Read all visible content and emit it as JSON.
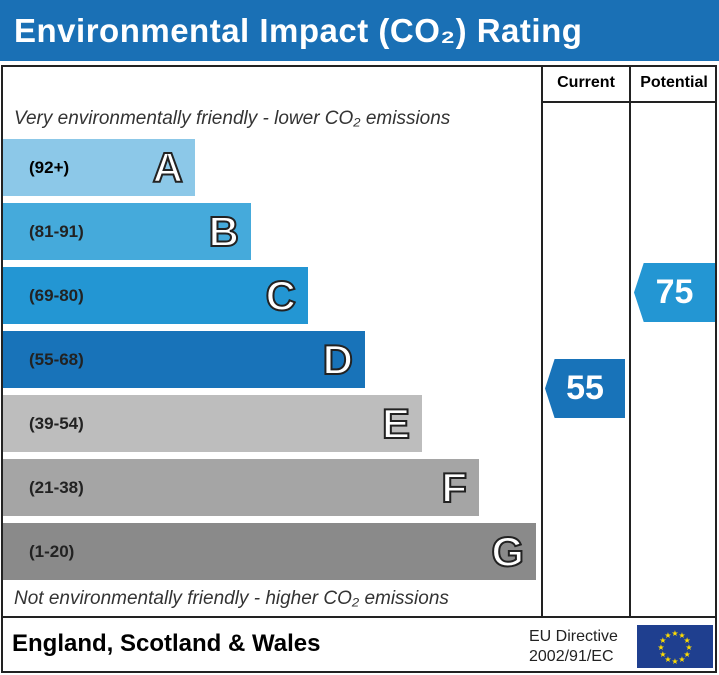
{
  "title": "Environmental Impact (CO₂) Rating",
  "chart_data": {
    "type": "bar",
    "columns": {
      "current": "Current",
      "potential": "Potential"
    },
    "top_caption": "Very environmentally friendly - lower CO₂ emissions",
    "bottom_caption": "Not environmentally friendly - higher CO₂ emissions",
    "bands": [
      {
        "letter": "A",
        "range": "(92+)",
        "color": "#8cc8e8"
      },
      {
        "letter": "B",
        "range": "(81-91)",
        "color": "#45aadb"
      },
      {
        "letter": "C",
        "range": "(69-80)",
        "color": "#2396d3"
      },
      {
        "letter": "D",
        "range": "(55-68)",
        "color": "#1873b9"
      },
      {
        "letter": "E",
        "range": "(39-54)",
        "color": "#bdbdbd"
      },
      {
        "letter": "F",
        "range": "(21-38)",
        "color": "#a5a5a5"
      },
      {
        "letter": "G",
        "range": "(1-20)",
        "color": "#8a8a8a"
      }
    ],
    "current": {
      "value": "55",
      "band": "D",
      "color": "#1873b9"
    },
    "potential": {
      "value": "75",
      "band": "C",
      "color": "#2396d3"
    }
  },
  "footer": {
    "region": "England, Scotland & Wales",
    "directive_line1": "EU Directive",
    "directive_line2": "2002/91/EC",
    "flag_color": "#1f3f8f",
    "star_color": "#ffdd00"
  }
}
